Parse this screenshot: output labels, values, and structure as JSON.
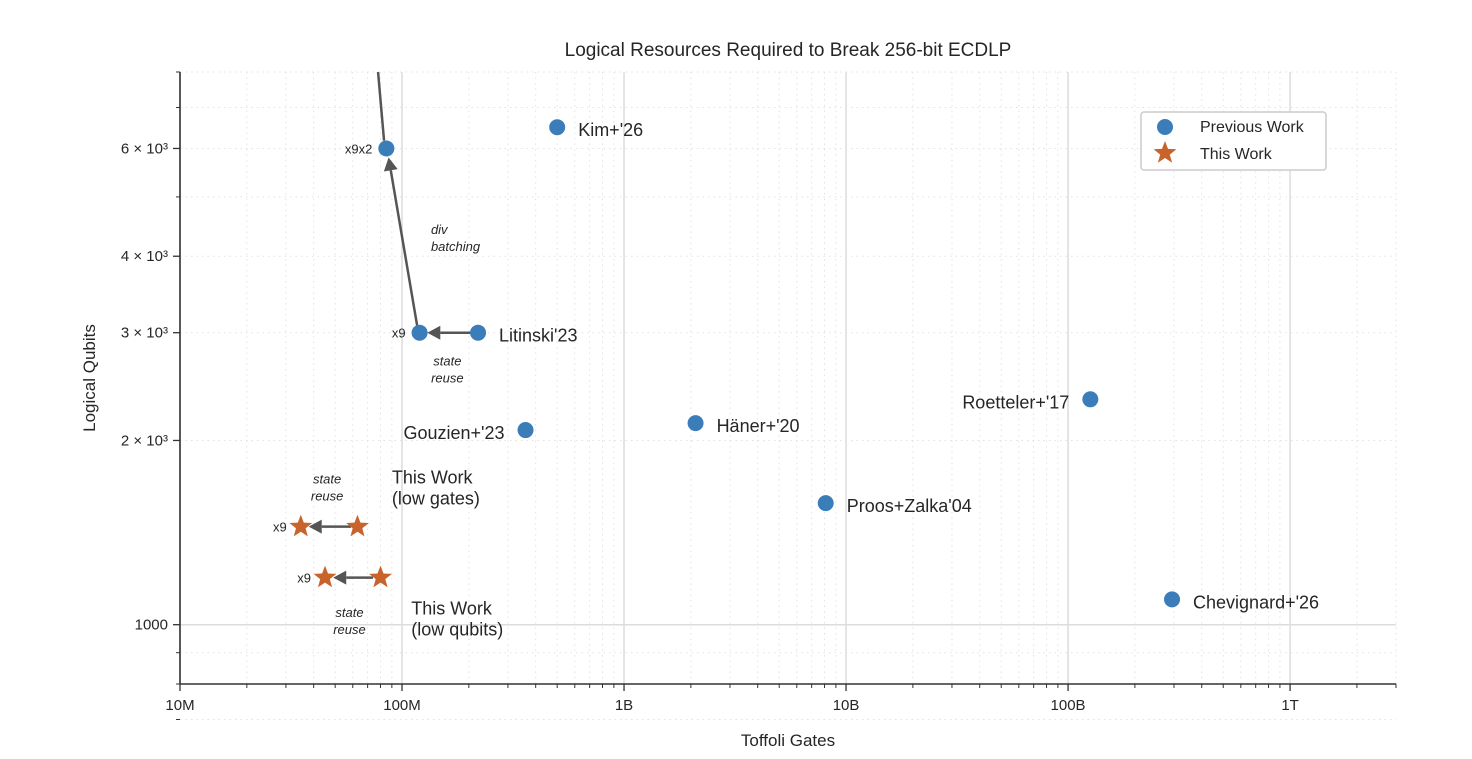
{
  "chart_data": {
    "type": "scatter",
    "title": "Logical Resources Required to Break 256-bit ECDLP",
    "xlabel": "Toffoli Gates",
    "ylabel": "Logical Qubits",
    "x_scale": "log",
    "y_scale": "log",
    "xlim": [
      10000000.0,
      3000000000000.0
    ],
    "ylim": [
      800,
      8000
    ],
    "grid": true,
    "legend_position": "top-right",
    "x_ticks": [
      {
        "v": 10000000.0,
        "label": "10M"
      },
      {
        "v": 100000000.0,
        "label": "100M"
      },
      {
        "v": 1000000000.0,
        "label": "1B"
      },
      {
        "v": 10000000000.0,
        "label": "10B"
      },
      {
        "v": 100000000000.0,
        "label": "100B"
      },
      {
        "v": 1000000000000.0,
        "label": "1T"
      }
    ],
    "y_ticks": [
      {
        "v": 1000,
        "label": "1000"
      },
      {
        "v": 2000,
        "label": "2 × 10³"
      },
      {
        "v": 3000,
        "label": "3 × 10³"
      },
      {
        "v": 4000,
        "label": "4 × 10³"
      },
      {
        "v": 6000,
        "label": "6 × 10³"
      }
    ],
    "colors": {
      "previous": "#3b7db8",
      "this": "#c8632b",
      "arrow": "#555555"
    },
    "series": [
      {
        "name": "Previous Work",
        "marker": "circle",
        "points": [
          {
            "x": 500000000.0,
            "y": 6500,
            "label": "Kim+'26",
            "pos": "right"
          },
          {
            "x": 220000000.0,
            "y": 3000,
            "label": "Litinski'23",
            "pos": "right"
          },
          {
            "x": 120000000.0,
            "y": 3000,
            "label": "x9",
            "pos": "left-small"
          },
          {
            "x": 85000000.0,
            "y": 6000,
            "label": "x9x2",
            "pos": "left-small"
          },
          {
            "x": 360000000.0,
            "y": 2080,
            "label": "Gouzien+'23",
            "pos": "left"
          },
          {
            "x": 2100000000.0,
            "y": 2135,
            "label": "Häner+'20",
            "pos": "right"
          },
          {
            "x": 8100000000.0,
            "y": 1580,
            "label": "Proos+Zalka'04",
            "pos": "right"
          },
          {
            "x": 126000000000.0,
            "y": 2335,
            "label": "Roetteler+'17",
            "pos": "left"
          },
          {
            "x": 294000000000.0,
            "y": 1100,
            "label": "Chevignard+'26",
            "pos": "right"
          }
        ]
      },
      {
        "name": "This Work",
        "marker": "star",
        "points": [
          {
            "x": 63000000.0,
            "y": 1446,
            "label": "",
            "pos": ""
          },
          {
            "x": 35000000.0,
            "y": 1446,
            "label": "x9",
            "pos": "left-small"
          },
          {
            "x": 80000000.0,
            "y": 1194,
            "label": "",
            "pos": ""
          },
          {
            "x": 45000000.0,
            "y": 1194,
            "label": "x9",
            "pos": "left-small"
          }
        ]
      }
    ],
    "annotations": [
      {
        "text": [
          "This Work",
          "(low gates)"
        ],
        "x": 90000000.0,
        "y": 1700,
        "style": "large"
      },
      {
        "text": [
          "This Work",
          "(low qubits)"
        ],
        "x": 110000000.0,
        "y": 1040,
        "style": "large"
      },
      {
        "text": [
          "state",
          "reuse"
        ],
        "x": 46000000.0,
        "y": 1700,
        "style": "italic"
      },
      {
        "text": [
          "state",
          "reuse"
        ],
        "x": 58000000.0,
        "y": 1030,
        "style": "italic"
      },
      {
        "text": [
          "state",
          "reuse"
        ],
        "x": 160000000.0,
        "y": 2650,
        "style": "italic"
      },
      {
        "text": [
          "div",
          "batching"
        ],
        "x": 135000000.0,
        "y": 4350,
        "style": "italic-left"
      }
    ],
    "arrows": [
      {
        "from": [
          205000000.0,
          3000
        ],
        "to": [
          130000000.0,
          3000
        ]
      },
      {
        "from": [
          117000000.0,
          3080
        ],
        "to": [
          87000000.0,
          5800
        ]
      },
      {
        "from": [
          59000000.0,
          1446
        ],
        "to": [
          38000000.0,
          1446
        ]
      },
      {
        "from": [
          74000000.0,
          1194
        ],
        "to": [
          49000000.0,
          1194
        ]
      }
    ],
    "lines": [
      {
        "from": [
          78000000.0,
          8000
        ],
        "to": [
          83000000.0,
          6180
        ]
      }
    ]
  }
}
